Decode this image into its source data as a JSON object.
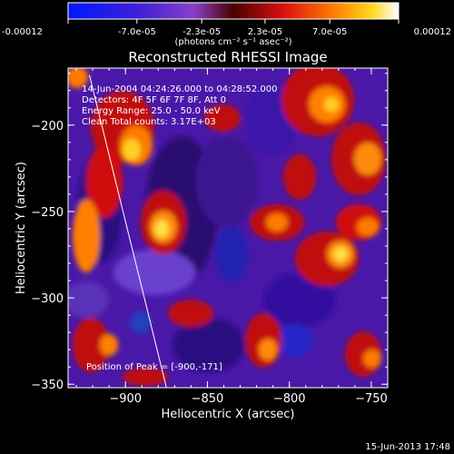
{
  "colorbar": {
    "tick_labels": [
      "-0.00012",
      "-7.0e-05",
      "-2.3e-05",
      "2.3e-05",
      "7.0e-05",
      "0.00012"
    ],
    "tick_values": [
      -0.00012,
      -7e-05,
      -2.3e-05,
      2.3e-05,
      7e-05,
      0.00012
    ],
    "range": [
      -0.00012,
      0.00012
    ],
    "units_label": "(photons cm⁻² s⁻¹ asec⁻²)"
  },
  "chart_data": {
    "type": "heatmap",
    "title": "Reconstructed RHESSI Image",
    "xlabel": "Heliocentric X (arcsec)",
    "ylabel": "Heliocentric Y (arcsec)",
    "xlim": [
      -935,
      -740
    ],
    "ylim": [
      -352,
      -167
    ],
    "x_ticks": [
      -900,
      -850,
      -800,
      -750
    ],
    "x_tick_labels": [
      "−900",
      "−850",
      "−800",
      "−750"
    ],
    "y_ticks": [
      -350,
      -300,
      -250,
      -200
    ],
    "y_tick_labels": [
      "−350",
      "−300",
      "−250",
      "−200"
    ],
    "annotations": [
      "14-Jun-2004 04:24:26.000 to 04:28:52.000",
      "Detectors: 4F 5F 6F 7F 8F, Att 0",
      "Energy Range: 25.0 - 50.0 keV",
      "Clean    Total counts: 3.17E+03",
      "Position of Peak = [-900,-171]"
    ],
    "limb_line": {
      "x": [
        -922,
        -875
      ],
      "y": [
        -171,
        -352
      ]
    },
    "peak_position": [
      -900,
      -171
    ],
    "grid": false,
    "legend": "none"
  },
  "footer": {
    "date": "15-Jun-2013 17:48"
  }
}
